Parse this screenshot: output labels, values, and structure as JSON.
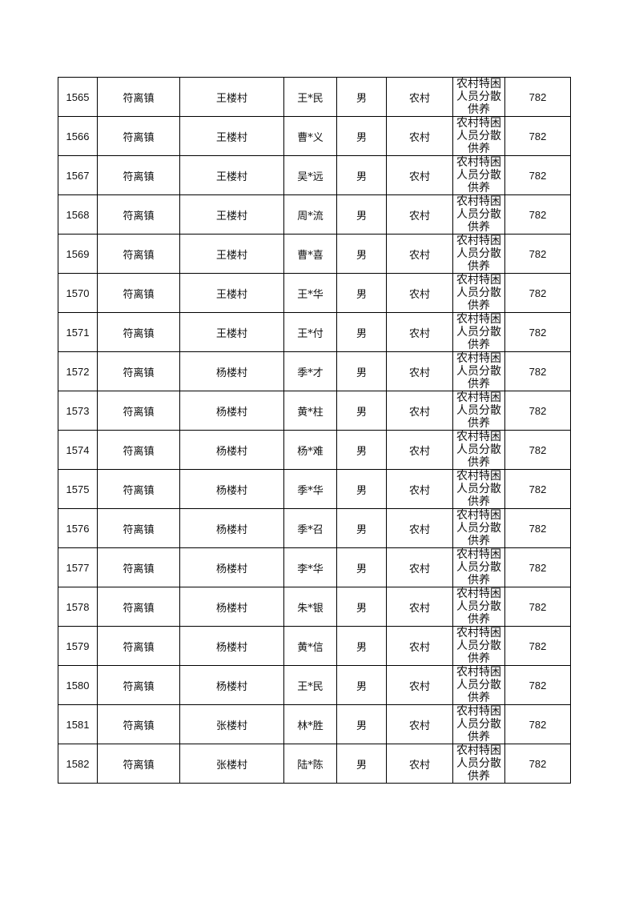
{
  "rows": [
    {
      "id": "1565",
      "town": "符离镇",
      "village": "王楼村",
      "name": "王*民",
      "gender": "男",
      "area": "农村",
      "type": "农村特困人员分散供养",
      "amount": "782"
    },
    {
      "id": "1566",
      "town": "符离镇",
      "village": "王楼村",
      "name": "曹*义",
      "gender": "男",
      "area": "农村",
      "type": "农村特困人员分散供养",
      "amount": "782"
    },
    {
      "id": "1567",
      "town": "符离镇",
      "village": "王楼村",
      "name": "吴*远",
      "gender": "男",
      "area": "农村",
      "type": "农村特困人员分散供养",
      "amount": "782"
    },
    {
      "id": "1568",
      "town": "符离镇",
      "village": "王楼村",
      "name": "周*流",
      "gender": "男",
      "area": "农村",
      "type": "农村特困人员分散供养",
      "amount": "782"
    },
    {
      "id": "1569",
      "town": "符离镇",
      "village": "王楼村",
      "name": "曹*喜",
      "gender": "男",
      "area": "农村",
      "type": "农村特困人员分散供养",
      "amount": "782"
    },
    {
      "id": "1570",
      "town": "符离镇",
      "village": "王楼村",
      "name": "王*华",
      "gender": "男",
      "area": "农村",
      "type": "农村特困人员分散供养",
      "amount": "782"
    },
    {
      "id": "1571",
      "town": "符离镇",
      "village": "王楼村",
      "name": "王*付",
      "gender": "男",
      "area": "农村",
      "type": "农村特困人员分散供养",
      "amount": "782"
    },
    {
      "id": "1572",
      "town": "符离镇",
      "village": "杨楼村",
      "name": "季*才",
      "gender": "男",
      "area": "农村",
      "type": "农村特困人员分散供养",
      "amount": "782"
    },
    {
      "id": "1573",
      "town": "符离镇",
      "village": "杨楼村",
      "name": "黄*柱",
      "gender": "男",
      "area": "农村",
      "type": "农村特困人员分散供养",
      "amount": "782"
    },
    {
      "id": "1574",
      "town": "符离镇",
      "village": "杨楼村",
      "name": "杨*难",
      "gender": "男",
      "area": "农村",
      "type": "农村特困人员分散供养",
      "amount": "782"
    },
    {
      "id": "1575",
      "town": "符离镇",
      "village": "杨楼村",
      "name": "季*华",
      "gender": "男",
      "area": "农村",
      "type": "农村特困人员分散供养",
      "amount": "782"
    },
    {
      "id": "1576",
      "town": "符离镇",
      "village": "杨楼村",
      "name": "季*召",
      "gender": "男",
      "area": "农村",
      "type": "农村特困人员分散供养",
      "amount": "782"
    },
    {
      "id": "1577",
      "town": "符离镇",
      "village": "杨楼村",
      "name": "李*华",
      "gender": "男",
      "area": "农村",
      "type": "农村特困人员分散供养",
      "amount": "782"
    },
    {
      "id": "1578",
      "town": "符离镇",
      "village": "杨楼村",
      "name": "朱*银",
      "gender": "男",
      "area": "农村",
      "type": "农村特困人员分散供养",
      "amount": "782"
    },
    {
      "id": "1579",
      "town": "符离镇",
      "village": "杨楼村",
      "name": "黄*信",
      "gender": "男",
      "area": "农村",
      "type": "农村特困人员分散供养",
      "amount": "782"
    },
    {
      "id": "1580",
      "town": "符离镇",
      "village": "杨楼村",
      "name": "王*民",
      "gender": "男",
      "area": "农村",
      "type": "农村特困人员分散供养",
      "amount": "782"
    },
    {
      "id": "1581",
      "town": "符离镇",
      "village": "张楼村",
      "name": "林*胜",
      "gender": "男",
      "area": "农村",
      "type": "农村特困人员分散供养",
      "amount": "782"
    },
    {
      "id": "1582",
      "town": "符离镇",
      "village": "张楼村",
      "name": "陆*陈",
      "gender": "男",
      "area": "农村",
      "type": "农村特困人员分散供养",
      "amount": "782"
    }
  ]
}
